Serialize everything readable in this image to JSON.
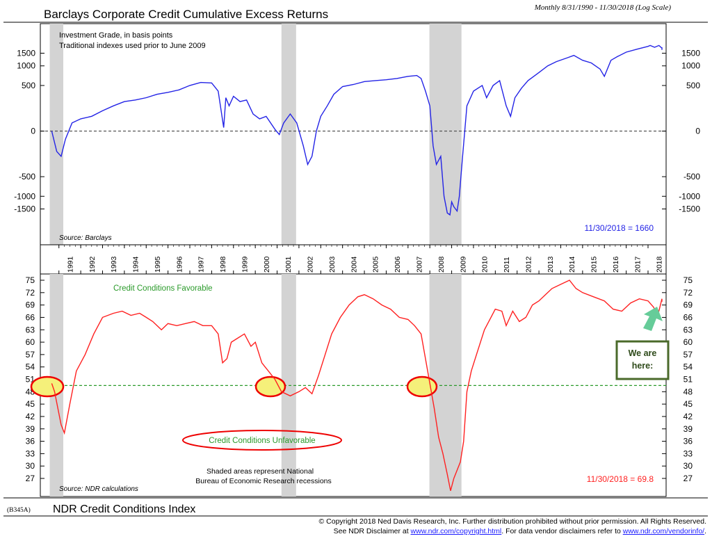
{
  "header": {
    "title": "Barclays Corporate Credit Cumulative Excess Returns",
    "frequency_note": "Monthly 8/31/1990 - 11/30/2018 (Log Scale)"
  },
  "top_panel": {
    "note_line1": "Investment Grade, in basis points",
    "note_line2": "Traditional indexes used prior to June 2009",
    "source": "Source: Barclays",
    "last_value_label": "11/30/2018 = 1660",
    "series_color": "#2323e6",
    "zero_line_color": "#555555"
  },
  "bottom_panel": {
    "favorable_label": "Credit Conditions Favorable",
    "unfavorable_label": "Credit Conditions Unfavorable",
    "shading_note_line1": "Shaded areas represent National",
    "shading_note_line2": "Bureau of Economic Research recessions",
    "source": "Source: NDR calculations",
    "last_value_label": "11/30/2018 = 69.8",
    "series_color": "#ff2020",
    "threshold_color": "#2a9a2a",
    "callout_text": "We are here:",
    "callout_border_color": "#4a6a2a",
    "arrow_color": "#66cc99",
    "highlight_fill": "#f5f07a",
    "highlight_stroke": "#ee0000"
  },
  "footer": {
    "chart_code": "(B345A)",
    "index_title": "NDR Credit Conditions Index",
    "copyright_line": "© Copyright 2018 Ned Davis Research, Inc.  Further distribution prohibited without prior permission.  All Rights Reserved.",
    "disclaimer_prefix": "See NDR Disclaimer at ",
    "disclaimer_link1": "www.ndr.com/copyright.html",
    "disclaimer_mid": ". For data vendor disclaimers refer to ",
    "disclaimer_link2": "www.ndr.com/vendorinfo/",
    "disclaimer_suffix": "."
  },
  "chart_data": [
    {
      "type": "line",
      "title": "Barclays Corporate Credit Cumulative Excess Returns",
      "subtitle": "Investment Grade, in basis points",
      "scale": "log",
      "ylim": [
        -1900,
        2000
      ],
      "yticks": [
        -1500,
        -1000,
        -500,
        0,
        500,
        1000,
        1500
      ],
      "xlim": [
        1990.67,
        2018.92
      ],
      "xticks": [
        "1991",
        "1992",
        "1993",
        "1994",
        "1995",
        "1996",
        "1997",
        "1998",
        "1999",
        "2000",
        "2001",
        "2002",
        "2003",
        "2004",
        "2005",
        "2006",
        "2007",
        "2008",
        "2009",
        "2010",
        "2011",
        "2012",
        "2013",
        "2014",
        "2015",
        "2016",
        "2017",
        "2018"
      ],
      "recessions": [
        [
          1990.58,
          1991.2
        ],
        [
          2001.2,
          2001.87
        ],
        [
          2007.98,
          2009.45
        ]
      ],
      "reference_line": 0,
      "last_value": {
        "date": "11/30/2018",
        "value": 1660
      },
      "series": [
        {
          "x": [
            1990.67,
            1990.9,
            1991.1,
            1991.3,
            1991.6,
            1992.0,
            1992.5,
            1993.0,
            1993.5,
            1994.0,
            1994.5,
            1995.0,
            1995.5,
            1996.0,
            1996.5,
            1997.0,
            1997.5,
            1998.0,
            1998.3,
            1998.55,
            1998.65,
            1998.8,
            1999.0,
            1999.3,
            1999.6,
            1999.9,
            2000.2,
            2000.5,
            2000.9,
            2001.1,
            2001.3,
            2001.6,
            2001.9,
            2002.2,
            2002.4,
            2002.6,
            2002.8,
            2003.0,
            2003.3,
            2003.6,
            2004.0,
            2004.5,
            2005.0,
            2005.5,
            2006.0,
            2006.5,
            2007.0,
            2007.4,
            2007.6,
            2007.8,
            2008.0,
            2008.15,
            2008.3,
            2008.5,
            2008.65,
            2008.8,
            2008.92,
            2009.0,
            2009.1,
            2009.25,
            2009.35,
            2009.5,
            2009.7,
            2010.0,
            2010.4,
            2010.6,
            2010.9,
            2011.2,
            2011.5,
            2011.7,
            2011.9,
            2012.2,
            2012.5,
            2013.0,
            2013.4,
            2013.8,
            2014.3,
            2014.6,
            2015.0,
            2015.4,
            2015.8,
            2016.0,
            2016.3,
            2016.6,
            2017.0,
            2017.5,
            2018.0,
            2018.1,
            2018.3,
            2018.5,
            2018.7,
            2018.8,
            2018.92
          ],
          "y": [
            0,
            -150,
            -200,
            -50,
            50,
            80,
            100,
            150,
            200,
            250,
            270,
            300,
            350,
            380,
            420,
            500,
            560,
            550,
            400,
            20,
            300,
            200,
            320,
            250,
            270,
            120,
            80,
            100,
            10,
            -20,
            50,
            120,
            50,
            -100,
            -300,
            -200,
            0,
            100,
            200,
            350,
            480,
            520,
            580,
            600,
            620,
            650,
            700,
            720,
            650,
            400,
            200,
            -100,
            -300,
            -200,
            -1000,
            -1700,
            -1800,
            -1200,
            -1400,
            -1600,
            -1000,
            -200,
            200,
            400,
            500,
            300,
            500,
            600,
            200,
            100,
            300,
            450,
            600,
            800,
            1000,
            1150,
            1300,
            1400,
            1200,
            1100,
            900,
            700,
            1200,
            1350,
            1550,
            1700,
            1850,
            1900,
            1800,
            1900,
            1750,
            1800,
            1660
          ]
        }
      ]
    },
    {
      "type": "line",
      "title": "NDR Credit Conditions Index",
      "ylim": [
        25,
        76
      ],
      "yticks": [
        27,
        30,
        33,
        36,
        39,
        42,
        45,
        48,
        51,
        54,
        57,
        60,
        63,
        66,
        69,
        72,
        75
      ],
      "xlim": [
        1990.67,
        2018.92
      ],
      "recessions": [
        [
          1990.58,
          1991.2
        ],
        [
          2001.2,
          2001.87
        ],
        [
          2007.98,
          2009.45
        ]
      ],
      "reference_line": 49.5,
      "last_value": {
        "date": "11/30/2018",
        "value": 69.8
      },
      "annotations": [
        "Credit Conditions Favorable",
        "Credit Conditions Unfavorable",
        "We are here:"
      ],
      "series": [
        {
          "x": [
            1990.67,
            1990.8,
            1990.95,
            1991.1,
            1991.25,
            1991.5,
            1991.8,
            1992.2,
            1992.6,
            1993.0,
            1993.5,
            1993.9,
            1994.3,
            1994.7,
            1995.0,
            1995.3,
            1995.7,
            1996.0,
            1996.4,
            1996.8,
            1997.2,
            1997.6,
            1998.0,
            1998.3,
            1998.5,
            1998.7,
            1998.9,
            1999.2,
            1999.5,
            1999.8,
            2000.0,
            2000.3,
            2000.6,
            2000.9,
            2001.2,
            2001.6,
            2002.0,
            2002.3,
            2002.6,
            2002.9,
            2003.2,
            2003.5,
            2003.9,
            2004.3,
            2004.7,
            2005.0,
            2005.4,
            2005.8,
            2006.2,
            2006.6,
            2007.0,
            2007.3,
            2007.6,
            2007.8,
            2008.0,
            2008.2,
            2008.4,
            2008.6,
            2008.8,
            2008.95,
            2009.1,
            2009.25,
            2009.4,
            2009.55,
            2009.7,
            2009.9,
            2010.2,
            2010.5,
            2010.8,
            2011.0,
            2011.3,
            2011.5,
            2011.8,
            2012.1,
            2012.4,
            2012.7,
            2013.0,
            2013.3,
            2013.6,
            2014.0,
            2014.4,
            2014.7,
            2015.0,
            2015.5,
            2016.0,
            2016.4,
            2016.8,
            2017.2,
            2017.6,
            2018.0,
            2018.25,
            2018.45,
            2018.65,
            2018.8,
            2018.92
          ],
          "y": [
            50,
            48,
            44,
            40,
            38,
            45,
            53,
            57,
            62,
            66,
            67,
            67.5,
            66.5,
            67,
            66,
            65,
            63,
            64.5,
            64,
            64.5,
            65,
            64,
            64,
            62,
            55,
            56,
            60,
            61,
            62,
            59,
            60,
            55,
            53,
            51,
            48,
            47,
            48,
            49,
            47.5,
            52,
            57,
            62,
            66,
            69,
            71,
            71.5,
            70.5,
            69,
            68,
            66,
            65.5,
            64,
            62,
            56,
            50,
            44,
            37,
            33,
            28,
            24,
            27,
            29,
            31,
            36,
            48,
            53,
            58,
            63,
            66,
            68,
            67.5,
            64,
            67.5,
            65,
            66,
            69,
            70,
            71.5,
            73,
            74,
            75,
            73,
            72,
            71,
            70,
            68,
            67.5,
            69.5,
            70.5,
            70,
            68.5,
            66.5,
            70.5,
            70.3,
            69.8
          ]
        }
      ]
    }
  ]
}
